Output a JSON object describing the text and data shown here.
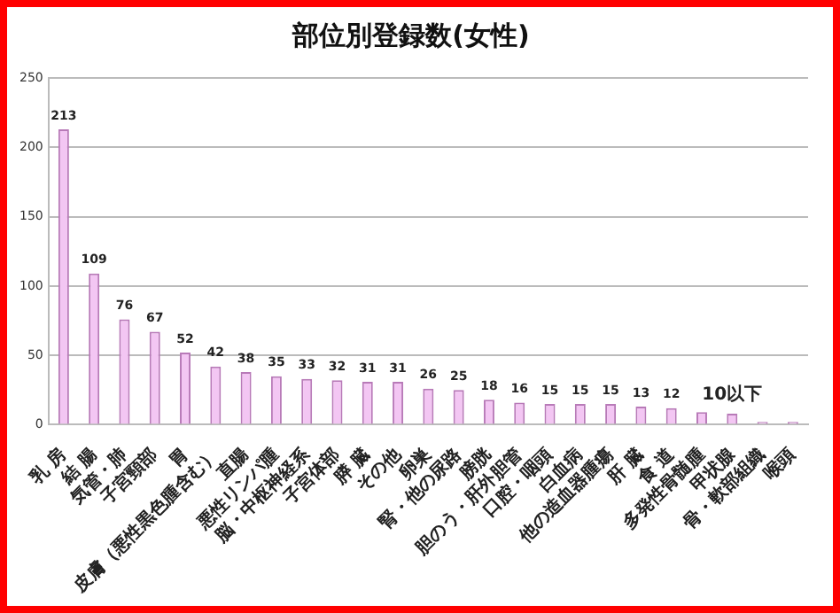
{
  "chart_data": {
    "type": "bar",
    "title": "部位別登録数(女性)",
    "categories": [
      "乳 房",
      "結 腸",
      "気管・肺",
      "子宮頸部",
      "胃",
      "皮膚（悪性黒色腫含む）",
      "直腸",
      "悪性リンパ腫",
      "脳・中枢神経系",
      "子宮体部",
      "膵 臓",
      "その他",
      "卵巣",
      "腎・他の尿路",
      "膀胱",
      "胆のう・肝外胆管",
      "口腔・咽頭",
      "白血病",
      "他の造血器腫瘍",
      "肝 臓",
      "食 道",
      "多発性骨髄腫",
      "甲状腺",
      "骨・軟部組織",
      "喉頭"
    ],
    "values": [
      213,
      109,
      76,
      67,
      52,
      42,
      38,
      35,
      33,
      32,
      31,
      31,
      26,
      25,
      18,
      16,
      15,
      15,
      15,
      13,
      12,
      9,
      8,
      2,
      2
    ],
    "value_labels": [
      "213",
      "109",
      "76",
      "67",
      "52",
      "42",
      "38",
      "35",
      "33",
      "32",
      "31",
      "31",
      "26",
      "25",
      "18",
      "16",
      "15",
      "15",
      "15",
      "13",
      "12",
      null,
      null,
      null,
      null
    ],
    "annotations": [
      {
        "text": "10以下",
        "x": "甲状腺",
        "y": 10
      }
    ],
    "color": "#f3c6f3",
    "ylim": [
      0,
      250
    ],
    "yticks": [
      0,
      50,
      100,
      150,
      200,
      250
    ],
    "grid": "y"
  }
}
